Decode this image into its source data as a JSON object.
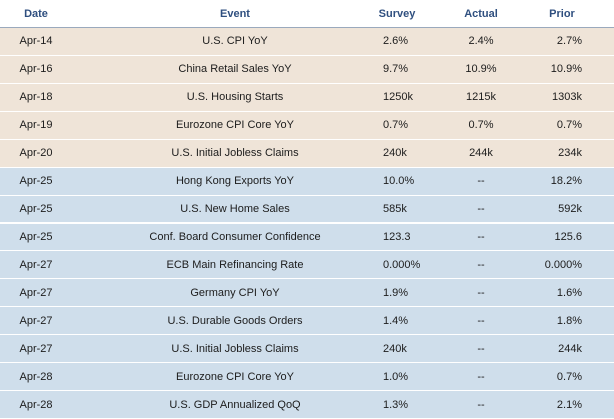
{
  "table": {
    "header": [
      "Date",
      "Event",
      "Survey",
      "Actual",
      "Prior"
    ],
    "rows": [
      [
        "Apr-14",
        "U.S. CPI YoY",
        "2.6%",
        "2.4%",
        "2.7%"
      ],
      [
        "Apr-16",
        "China Retail Sales YoY",
        "9.7%",
        "10.9%",
        "10.9%"
      ],
      [
        "Apr-18",
        "U.S. Housing Starts",
        "1250k",
        "1215k",
        "1303k"
      ],
      [
        "Apr-19",
        "Eurozone CPI Core YoY",
        "0.7%",
        "0.7%",
        "0.7%"
      ],
      [
        "Apr-20",
        "U.S. Initial Jobless Claims",
        "240k",
        "244k",
        "234k"
      ],
      [
        "Apr-25",
        "Hong Kong Exports YoY",
        "10.0%",
        "--",
        "18.2%"
      ],
      [
        "Apr-25",
        "U.S. New Home Sales",
        "585k",
        "--",
        "592k"
      ],
      [
        "Apr-25",
        "Conf. Board Consumer Confidence",
        "123.3",
        "--",
        "125.6"
      ],
      [
        "Apr-27",
        "ECB Main Refinancing Rate",
        "0.000%",
        "--",
        "0.000%"
      ],
      [
        "Apr-27",
        "Germany CPI YoY",
        "1.9%",
        "--",
        "1.6%"
      ],
      [
        "Apr-27",
        "U.S. Durable Goods Orders",
        "1.4%",
        "--",
        "1.8%"
      ],
      [
        "Apr-27",
        "U.S. Initial Jobless Claims",
        "240k",
        "--",
        "244k"
      ],
      [
        "Apr-28",
        "Eurozone CPI Core YoY",
        "1.0%",
        "--",
        "0.7%"
      ],
      [
        "Apr-28",
        "U.S. GDP Annualized QoQ",
        "1.3%",
        "--",
        "2.1%"
      ]
    ]
  }
}
